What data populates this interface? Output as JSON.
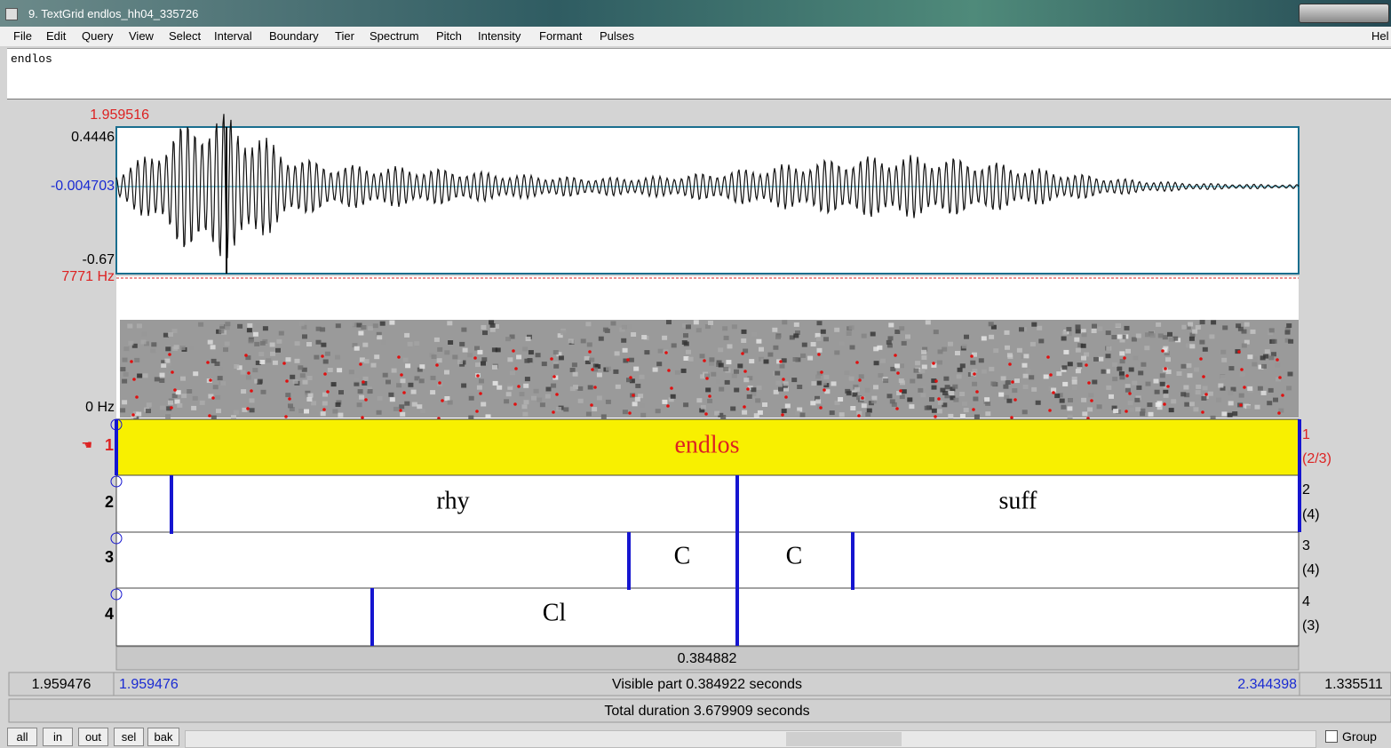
{
  "window": {
    "title": "9. TextGrid endlos_hh04_335726"
  },
  "menu": {
    "items": [
      "File",
      "Edit",
      "Query",
      "View",
      "Select",
      "Interval",
      "Boundary",
      "Tier",
      "Spectrum",
      "Pitch",
      "Intensity",
      "Formant",
      "Pulses"
    ],
    "help": "Hel"
  },
  "text_field": "endlos",
  "waveform": {
    "cursor_time": "1.959516",
    "max": "0.4446",
    "zero": "-0.004703",
    "min": "-0.67"
  },
  "spectrogram": {
    "max": "7771 Hz",
    "min": "0 Hz"
  },
  "tiers": [
    {
      "number": "1",
      "intervals": [
        "endlos"
      ],
      "right_number": "1",
      "right_count": "(2/3)"
    },
    {
      "number": "2",
      "intervals": [
        "rhy",
        "suff"
      ],
      "right_number": "2",
      "right_count": "(4)"
    },
    {
      "number": "3",
      "intervals": [
        "C",
        "C"
      ],
      "right_number": "3",
      "right_count": "(4)"
    },
    {
      "number": "4",
      "intervals": [
        "Cl"
      ],
      "right_number": "4",
      "right_count": "(3)"
    }
  ],
  "selection_length": "0.384882",
  "status": {
    "left_outside": "1.959476",
    "start": "1.959476",
    "visible": "Visible part 0.384922 seconds",
    "end": "2.344398",
    "right_outside": "1.335511",
    "total": "Total duration 3.679909 seconds"
  },
  "buttons": [
    "all",
    "in",
    "out",
    "sel",
    "bak"
  ],
  "group": "Group"
}
